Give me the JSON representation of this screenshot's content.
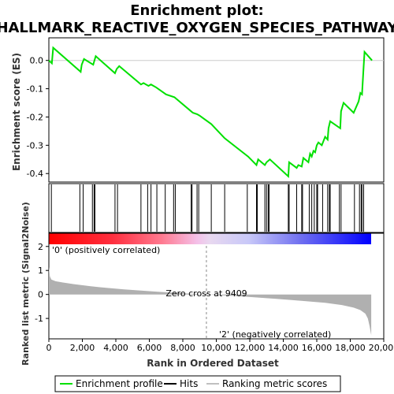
{
  "title_line1": "Enrichment plot:",
  "title_line2": "HALLMARK_REACTIVE_OXYGEN_SPECIES_PATHWAY",
  "colors": {
    "es_line": "#00e000",
    "hit": "#000000",
    "metric_fill": "#b0b0b0",
    "pos_label": "#ff0000",
    "neg_label": "#0000ff",
    "zero_line": "#888888"
  },
  "chart_data": [
    {
      "type": "line",
      "name": "enrichment-score",
      "ylabel": "Enrichment score (ES)",
      "xlim": [
        0,
        20000
      ],
      "ylim": [
        -0.43,
        0.08
      ],
      "yticks": [
        0.0,
        -0.1,
        -0.2,
        -0.3,
        -0.4
      ],
      "ytick_labels": [
        "0.0",
        "-0.1",
        "-0.2",
        "-0.3",
        "-0.4"
      ],
      "x": [
        0,
        180,
        260,
        1900,
        1960,
        2100,
        2650,
        2750,
        2800,
        3950,
        4050,
        4200,
        5500,
        5650,
        5950,
        6100,
        6400,
        7000,
        7500,
        8500,
        8600,
        8850,
        9000,
        9700,
        10500,
        11900,
        12400,
        12500,
        12900,
        13000,
        13100,
        13200,
        14300,
        14350,
        14800,
        14900,
        15100,
        15200,
        15500,
        15600,
        15700,
        15800,
        15900,
        16000,
        16100,
        16300,
        16500,
        16650,
        16700,
        16800,
        17400,
        17450,
        17600,
        18200,
        18500,
        18600,
        18700,
        18800,
        18850,
        19300
      ],
      "y": [
        0.0,
        -0.01,
        0.045,
        -0.04,
        -0.015,
        0.005,
        -0.015,
        0.005,
        0.015,
        -0.045,
        -0.03,
        -0.02,
        -0.085,
        -0.08,
        -0.09,
        -0.085,
        -0.095,
        -0.12,
        -0.13,
        -0.18,
        -0.185,
        -0.19,
        -0.195,
        -0.225,
        -0.275,
        -0.34,
        -0.37,
        -0.35,
        -0.37,
        -0.36,
        -0.355,
        -0.35,
        -0.41,
        -0.36,
        -0.38,
        -0.37,
        -0.375,
        -0.345,
        -0.36,
        -0.33,
        -0.34,
        -0.32,
        -0.325,
        -0.3,
        -0.29,
        -0.3,
        -0.27,
        -0.28,
        -0.24,
        -0.215,
        -0.24,
        -0.18,
        -0.15,
        -0.185,
        -0.145,
        -0.115,
        -0.12,
        -0.02,
        0.03,
        0.0
      ]
    },
    {
      "type": "table",
      "name": "hits",
      "hit_positions": [
        150,
        1850,
        2050,
        2600,
        2700,
        2750,
        3950,
        4100,
        5500,
        5900,
        6100,
        6450,
        6950,
        7450,
        7550,
        8500,
        8550,
        8850,
        8950,
        9700,
        10500,
        11850,
        12400,
        12450,
        12900,
        13000,
        13100,
        13150,
        14300,
        14350,
        14800,
        15100,
        15150,
        15550,
        15700,
        15850,
        16000,
        16050,
        16350,
        16650,
        16750,
        16800,
        17350,
        17450,
        18250,
        18550,
        18650,
        18700,
        18800
      ]
    },
    {
      "type": "area",
      "name": "ranked-metric",
      "ylabel": "Ranked list metric (Signal2Noise)",
      "xlabel": "Rank in Ordered Dataset",
      "xlim": [
        0,
        20000
      ],
      "ylim": [
        -1.85,
        2.55
      ],
      "yticks": [
        2,
        1,
        0,
        -1
      ],
      "ytick_labels": [
        "2",
        "1",
        "0",
        "-1"
      ],
      "xticks": [
        0,
        2000,
        4000,
        6000,
        8000,
        10000,
        12000,
        14000,
        16000,
        18000,
        20000
      ],
      "xtick_labels": [
        "0",
        "2,000",
        "4,000",
        "6,000",
        "8,000",
        "10,000",
        "12,000",
        "14,000",
        "16,000",
        "18,000",
        "20,000"
      ],
      "x": [
        0,
        60,
        150,
        400,
        800,
        1500,
        2500,
        3500,
        4500,
        5500,
        6500,
        7500,
        8500,
        9409,
        10500,
        11500,
        12500,
        13500,
        14500,
        15500,
        16500,
        17500,
        18200,
        18600,
        18900,
        19050,
        19150,
        19250
      ],
      "values": [
        1.15,
        0.75,
        0.62,
        0.55,
        0.5,
        0.43,
        0.34,
        0.27,
        0.21,
        0.16,
        0.11,
        0.07,
        0.03,
        0.0,
        -0.04,
        -0.08,
        -0.13,
        -0.18,
        -0.23,
        -0.29,
        -0.35,
        -0.44,
        -0.55,
        -0.65,
        -0.8,
        -1.0,
        -1.3,
        -1.7
      ],
      "zero_cross": 9409,
      "zero_cross_label": "Zero cross at 9409",
      "pos_label": "'0' (positively correlated)",
      "neg_label": "'2' (negatively correlated)"
    }
  ],
  "legend": {
    "items": [
      {
        "label": "Enrichment profile",
        "color": "#00e000",
        "style": "line"
      },
      {
        "label": "Hits",
        "color": "#000000",
        "style": "line"
      },
      {
        "label": "Ranking metric scores",
        "color": "#c0c0c0",
        "style": "line"
      }
    ]
  }
}
